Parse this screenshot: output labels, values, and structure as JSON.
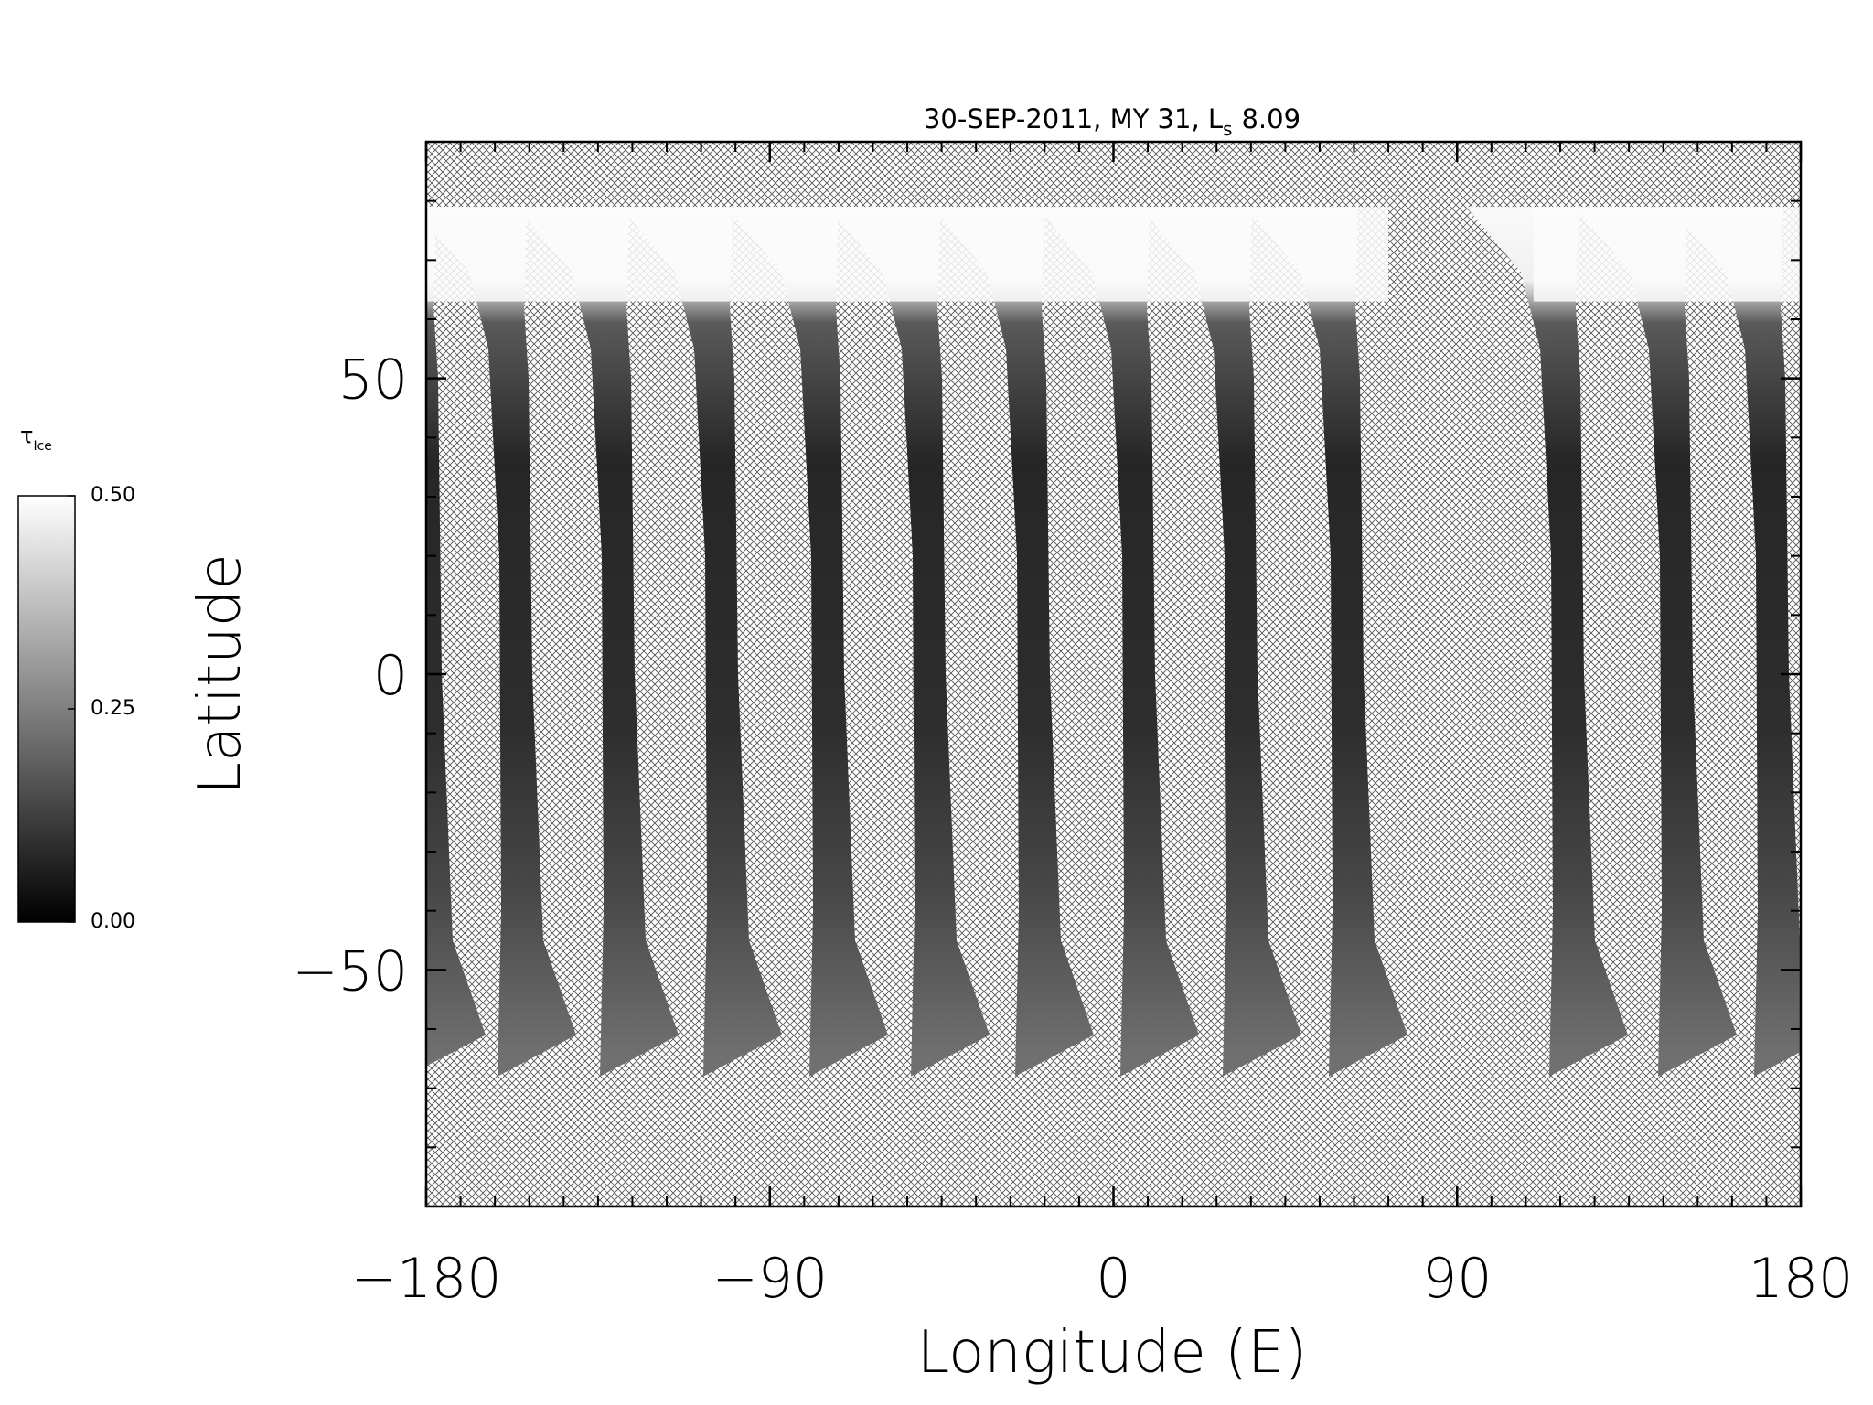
{
  "chart_data": {
    "type": "map",
    "title": "30-SEP-2011, MY 31,  L",
    "title_subscript": "s",
    "title_value": "8.09",
    "xlabel": "Longitude (E)",
    "ylabel": "Latitude",
    "xlim": [
      -180,
      180
    ],
    "ylim": [
      -90,
      90
    ],
    "xticks": [
      {
        "value": -180,
        "label": "−180"
      },
      {
        "value": -90,
        "label": "−90"
      },
      0,
      90,
      180
    ],
    "yticks": [
      {
        "value": -50,
        "label": "−50"
      },
      0,
      50
    ],
    "x_minor_divisions": 10,
    "y_minor_divisions": 5,
    "colorbar": {
      "label": "τ",
      "label_subscript": "Ice",
      "lim": [
        0,
        0.5
      ],
      "ticks": [
        {
          "value": 0,
          "label": "0.00"
        },
        {
          "value": 0.25,
          "label": "0.25"
        },
        {
          "value": 0.5,
          "label": "0.50"
        }
      ],
      "colors": [
        "#000000",
        "#ffffff"
      ]
    }
  }
}
